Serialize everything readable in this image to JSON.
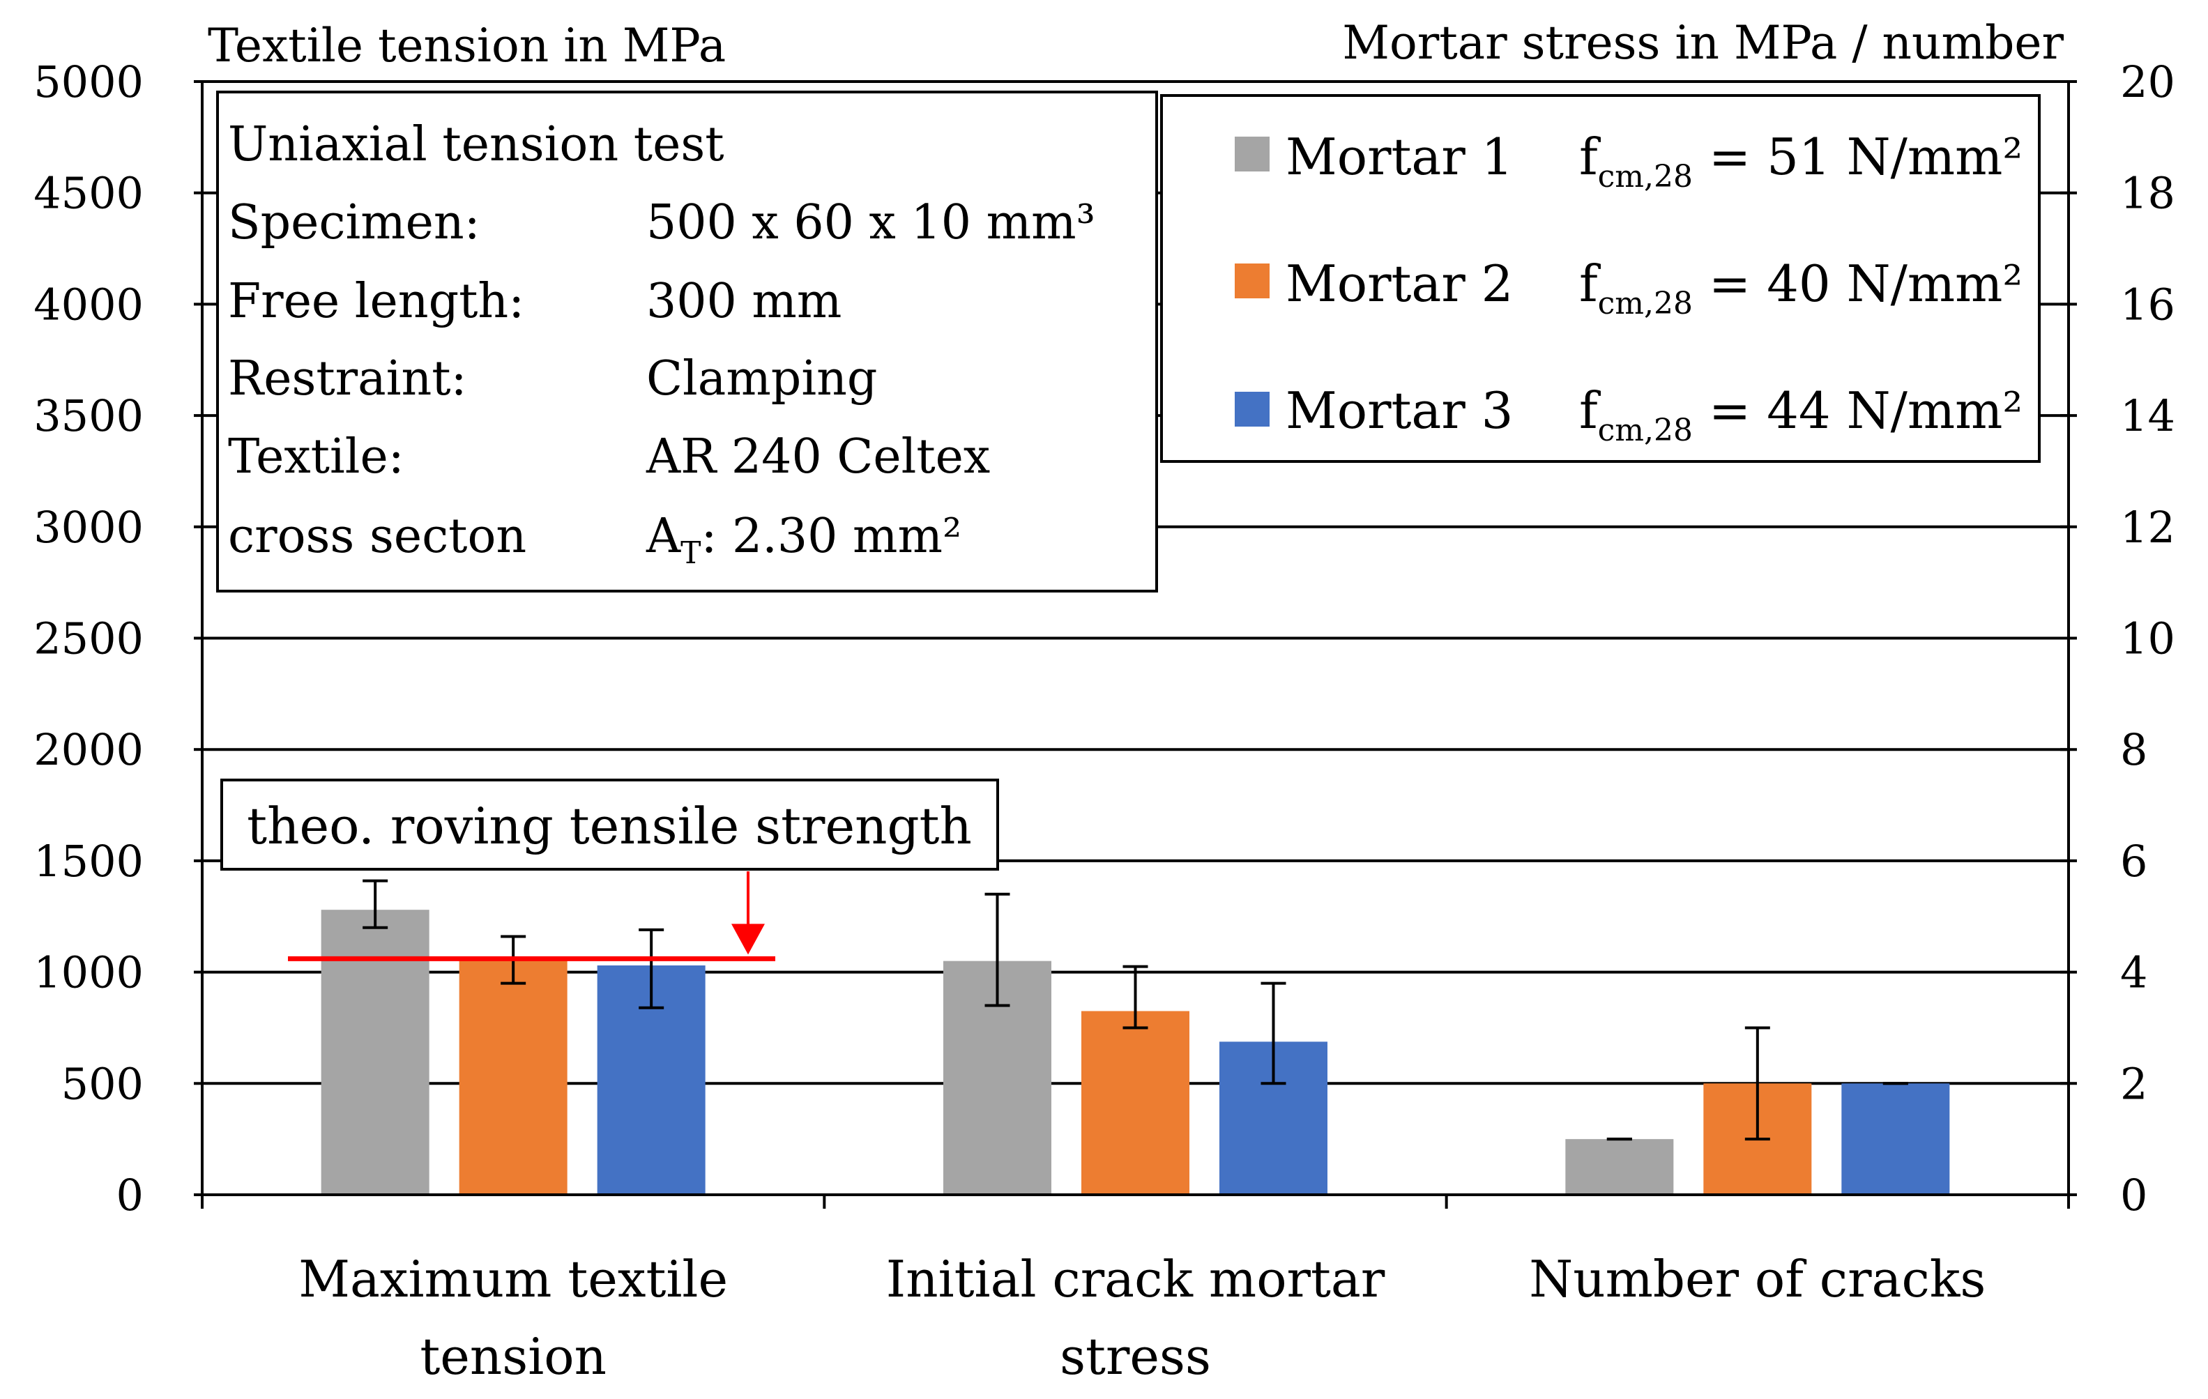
{
  "chart_data": {
    "type": "bar",
    "left_axis": {
      "label": "Textile tension in MPa",
      "ylim": [
        0,
        5000
      ],
      "ticks": [
        0,
        500,
        1000,
        1500,
        2000,
        2500,
        3000,
        3500,
        4000,
        4500,
        5000
      ]
    },
    "right_axis": {
      "label": "Mortar stress in MPa / number",
      "ylim": [
        0,
        20
      ],
      "ticks": [
        0,
        2,
        4,
        6,
        8,
        10,
        12,
        14,
        16,
        18,
        20
      ]
    },
    "categories": [
      {
        "label_lines": [
          "Maximum textile",
          "tension"
        ],
        "axis": "left"
      },
      {
        "label_lines": [
          "Initial crack mortar",
          "stress"
        ],
        "axis": "right"
      },
      {
        "label_lines": [
          "Number of cracks"
        ],
        "axis": "right"
      }
    ],
    "series": [
      {
        "name": "Mortar 1",
        "color": "#A5A5A5",
        "values": [
          1280,
          4.2,
          1.0
        ],
        "error": [
          [
            1200,
            1410
          ],
          [
            3.4,
            5.4
          ],
          [
            1.0,
            1.0
          ]
        ]
      },
      {
        "name": "Mortar 2",
        "color": "#ED7D31",
        "values": [
          1070,
          3.3,
          2.0
        ],
        "error": [
          [
            950,
            1160
          ],
          [
            3.0,
            4.1
          ],
          [
            1.0,
            3.0
          ]
        ]
      },
      {
        "name": "Mortar 3",
        "color": "#4472C4",
        "values": [
          1030,
          2.75,
          2.0
        ],
        "error": [
          [
            840,
            1190
          ],
          [
            2.0,
            3.8
          ],
          [
            2.0,
            2.0
          ]
        ]
      }
    ],
    "reference_line": {
      "label": "theo. roving tensile strength",
      "value": 1060,
      "axis": "left",
      "color": "#FF0000"
    },
    "grid": true,
    "legend_position": "top-right"
  },
  "info_box": {
    "title": "Uniaxial tension test",
    "rows": [
      {
        "key": "Specimen:",
        "value": "500 x 60 x 10 mm³"
      },
      {
        "key": "Free length:",
        "value": "300 mm"
      },
      {
        "key": "Restraint:",
        "value": "Clamping"
      },
      {
        "key": "Textile:",
        "value": "AR 240 Celtex"
      },
      {
        "key": "cross secton",
        "value_main": "A",
        "value_sub": "T",
        "value_rest": ": 2.30 mm²"
      }
    ]
  },
  "legend": {
    "entries": [
      {
        "name": "Mortar 1",
        "prop_main": "f",
        "prop_sub": "cm,28",
        "prop_value": " = 51 N/mm²"
      },
      {
        "name": "Mortar 2",
        "prop_main": "f",
        "prop_sub": "cm,28",
        "prop_value": " = 40 N/mm²"
      },
      {
        "name": "Mortar 3",
        "prop_main": "f",
        "prop_sub": "cm,28",
        "prop_value": " = 44 N/mm²"
      }
    ]
  }
}
